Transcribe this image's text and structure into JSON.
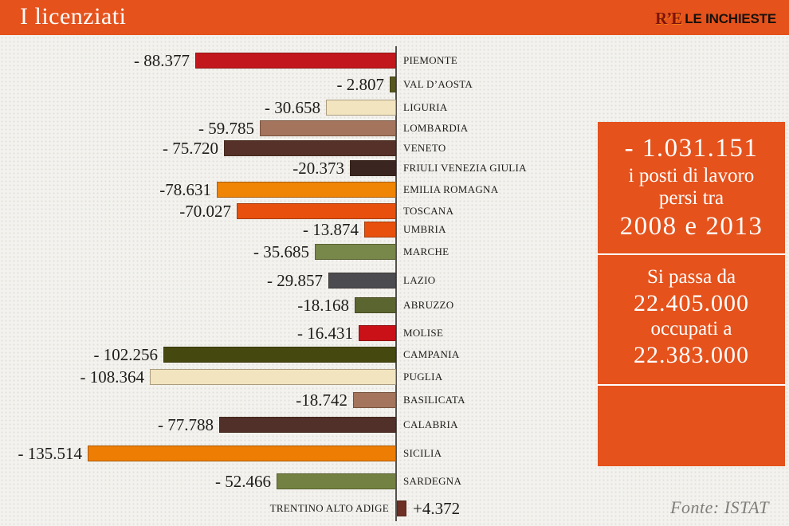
{
  "header": {
    "title": "I licenziati",
    "logo": {
      "re": "R’E",
      "name": "LE INCHIESTE"
    }
  },
  "chart_data": {
    "type": "bar",
    "orientation": "horizontal-diverging",
    "title": "I licenziati",
    "source": "Fonte: ISTAT",
    "max_abs_value": 135514,
    "axis_color": "#55524d",
    "regions": [
      {
        "label": "PIEMONTE",
        "value": -88377,
        "display": "- 88.377",
        "color": "#C2171D"
      },
      {
        "label": "VAL D’AOSTA",
        "value": -2807,
        "display": "- 2.807",
        "color": "#57581F"
      },
      {
        "label": "LIGURIA",
        "value": -30658,
        "display": "- 30.658",
        "color": "#F3E4C0"
      },
      {
        "label": "LOMBARDIA",
        "value": -59785,
        "display": "- 59.785",
        "color": "#A4745C"
      },
      {
        "label": "VENETO",
        "value": -75720,
        "display": "- 75.720",
        "color": "#553129"
      },
      {
        "label": "FRIULI VENEZIA GIULIA",
        "value": -20373,
        "display": "-20.373",
        "color": "#3B2520"
      },
      {
        "label": "EMILIA ROMAGNA",
        "value": -78631,
        "display": "-78.631",
        "color": "#F08404"
      },
      {
        "label": "TOSCANA",
        "value": -70027,
        "display": "-70.027",
        "color": "#E8500D"
      },
      {
        "label": "UMBRIA",
        "value": -13874,
        "display": "- 13.874",
        "color": "#E8500D"
      },
      {
        "label": "MARCHE",
        "value": -35685,
        "display": "- 35.685",
        "color": "#77884A"
      },
      {
        "label": "LAZIO",
        "value": -29857,
        "display": "- 29.857",
        "color": "#4B4B50"
      },
      {
        "label": "ABRUZZO",
        "value": -18168,
        "display": "-18.168",
        "color": "#5B6530"
      },
      {
        "label": "MOLISE",
        "value": -16431,
        "display": "- 16.431",
        "color": "#CA1118"
      },
      {
        "label": "CAMPANIA",
        "value": -102256,
        "display": "- 102.256",
        "color": "#45480F"
      },
      {
        "label": "PUGLIA",
        "value": -108364,
        "display": "- 108.364",
        "color": "#F3E4C0"
      },
      {
        "label": "BASILICATA",
        "value": -18742,
        "display": "-18.742",
        "color": "#A4745C"
      },
      {
        "label": "CALABRIA",
        "value": -77788,
        "display": "- 77.788",
        "color": "#513029"
      },
      {
        "label": "SICILIA",
        "value": -135514,
        "display": "- 135.514",
        "color": "#EE7D04"
      },
      {
        "label": "SARDEGNA",
        "value": -52466,
        "display": "- 52.466",
        "color": "#738242"
      },
      {
        "label": "TRENTINO ALTO ADIGE",
        "value": 4372,
        "display": "+4.372",
        "color": "#6E2F25"
      }
    ]
  },
  "panel": {
    "bg_color": "#E5521C",
    "section1": {
      "line1": "- 1.031.151",
      "line2": "i posti di lavoro",
      "line3": "persi tra",
      "line4": "2008 e 2013"
    },
    "section2": {
      "line1": "Si passa da",
      "line2": "22.405.000",
      "line3": "occupati a",
      "line4": "22.383.000"
    }
  },
  "footer": {
    "source": "Fonte: ISTAT"
  }
}
